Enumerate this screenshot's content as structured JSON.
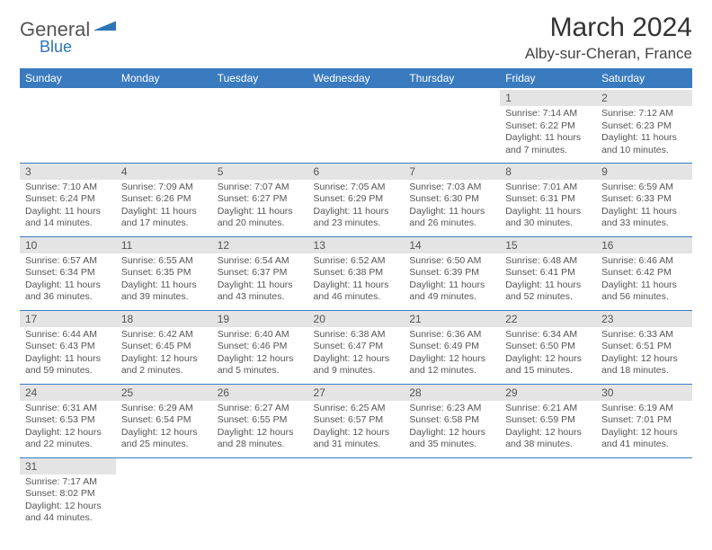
{
  "logo": {
    "word1": "General",
    "word2": "Blue",
    "accent": "#2c74b8"
  },
  "title": "March 2024",
  "location": "Alby-sur-Cheran, France",
  "header_bg": "#3a7bbf",
  "header_fg": "#ffffff",
  "dayheader_bg": "#e4e4e4",
  "cell_border": "#3a7bbf",
  "days": [
    "Sunday",
    "Monday",
    "Tuesday",
    "Wednesday",
    "Thursday",
    "Friday",
    "Saturday"
  ],
  "weeks": [
    [
      null,
      null,
      null,
      null,
      null,
      {
        "n": "1",
        "sr": "7:14 AM",
        "ss": "6:22 PM",
        "dl": "11 hours and 7 minutes."
      },
      {
        "n": "2",
        "sr": "7:12 AM",
        "ss": "6:23 PM",
        "dl": "11 hours and 10 minutes."
      }
    ],
    [
      {
        "n": "3",
        "sr": "7:10 AM",
        "ss": "6:24 PM",
        "dl": "11 hours and 14 minutes."
      },
      {
        "n": "4",
        "sr": "7:09 AM",
        "ss": "6:26 PM",
        "dl": "11 hours and 17 minutes."
      },
      {
        "n": "5",
        "sr": "7:07 AM",
        "ss": "6:27 PM",
        "dl": "11 hours and 20 minutes."
      },
      {
        "n": "6",
        "sr": "7:05 AM",
        "ss": "6:29 PM",
        "dl": "11 hours and 23 minutes."
      },
      {
        "n": "7",
        "sr": "7:03 AM",
        "ss": "6:30 PM",
        "dl": "11 hours and 26 minutes."
      },
      {
        "n": "8",
        "sr": "7:01 AM",
        "ss": "6:31 PM",
        "dl": "11 hours and 30 minutes."
      },
      {
        "n": "9",
        "sr": "6:59 AM",
        "ss": "6:33 PM",
        "dl": "11 hours and 33 minutes."
      }
    ],
    [
      {
        "n": "10",
        "sr": "6:57 AM",
        "ss": "6:34 PM",
        "dl": "11 hours and 36 minutes."
      },
      {
        "n": "11",
        "sr": "6:55 AM",
        "ss": "6:35 PM",
        "dl": "11 hours and 39 minutes."
      },
      {
        "n": "12",
        "sr": "6:54 AM",
        "ss": "6:37 PM",
        "dl": "11 hours and 43 minutes."
      },
      {
        "n": "13",
        "sr": "6:52 AM",
        "ss": "6:38 PM",
        "dl": "11 hours and 46 minutes."
      },
      {
        "n": "14",
        "sr": "6:50 AM",
        "ss": "6:39 PM",
        "dl": "11 hours and 49 minutes."
      },
      {
        "n": "15",
        "sr": "6:48 AM",
        "ss": "6:41 PM",
        "dl": "11 hours and 52 minutes."
      },
      {
        "n": "16",
        "sr": "6:46 AM",
        "ss": "6:42 PM",
        "dl": "11 hours and 56 minutes."
      }
    ],
    [
      {
        "n": "17",
        "sr": "6:44 AM",
        "ss": "6:43 PM",
        "dl": "11 hours and 59 minutes."
      },
      {
        "n": "18",
        "sr": "6:42 AM",
        "ss": "6:45 PM",
        "dl": "12 hours and 2 minutes."
      },
      {
        "n": "19",
        "sr": "6:40 AM",
        "ss": "6:46 PM",
        "dl": "12 hours and 5 minutes."
      },
      {
        "n": "20",
        "sr": "6:38 AM",
        "ss": "6:47 PM",
        "dl": "12 hours and 9 minutes."
      },
      {
        "n": "21",
        "sr": "6:36 AM",
        "ss": "6:49 PM",
        "dl": "12 hours and 12 minutes."
      },
      {
        "n": "22",
        "sr": "6:34 AM",
        "ss": "6:50 PM",
        "dl": "12 hours and 15 minutes."
      },
      {
        "n": "23",
        "sr": "6:33 AM",
        "ss": "6:51 PM",
        "dl": "12 hours and 18 minutes."
      }
    ],
    [
      {
        "n": "24",
        "sr": "6:31 AM",
        "ss": "6:53 PM",
        "dl": "12 hours and 22 minutes."
      },
      {
        "n": "25",
        "sr": "6:29 AM",
        "ss": "6:54 PM",
        "dl": "12 hours and 25 minutes."
      },
      {
        "n": "26",
        "sr": "6:27 AM",
        "ss": "6:55 PM",
        "dl": "12 hours and 28 minutes."
      },
      {
        "n": "27",
        "sr": "6:25 AM",
        "ss": "6:57 PM",
        "dl": "12 hours and 31 minutes."
      },
      {
        "n": "28",
        "sr": "6:23 AM",
        "ss": "6:58 PM",
        "dl": "12 hours and 35 minutes."
      },
      {
        "n": "29",
        "sr": "6:21 AM",
        "ss": "6:59 PM",
        "dl": "12 hours and 38 minutes."
      },
      {
        "n": "30",
        "sr": "6:19 AM",
        "ss": "7:01 PM",
        "dl": "12 hours and 41 minutes."
      }
    ],
    [
      {
        "n": "31",
        "sr": "7:17 AM",
        "ss": "8:02 PM",
        "dl": "12 hours and 44 minutes."
      },
      null,
      null,
      null,
      null,
      null,
      null
    ]
  ],
  "labels": {
    "sunrise": "Sunrise: ",
    "sunset": "Sunset: ",
    "daylight": "Daylight: "
  }
}
